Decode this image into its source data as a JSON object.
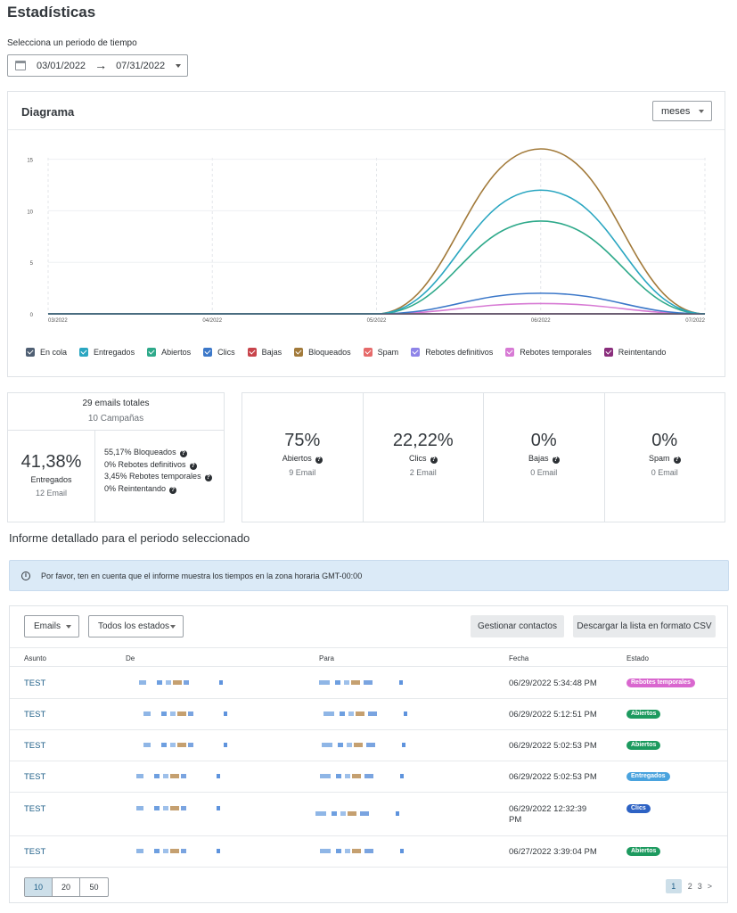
{
  "page": {
    "title": "Estadísticas",
    "period_label": "Selecciona un periodo de tiempo"
  },
  "date_range": {
    "start": "03/01/2022",
    "arrow": "→",
    "end": "07/31/2022"
  },
  "chart_panel": {
    "title": "Diagrama",
    "granularity": "meses"
  },
  "chart_data": {
    "type": "line",
    "title": "",
    "xlabel": "",
    "ylabel": "",
    "categories": [
      "03/2022",
      "04/2022",
      "05/2022",
      "06/2022",
      "07/2022"
    ],
    "ylim": [
      0,
      16
    ],
    "yticks": [
      0,
      5,
      10,
      15
    ],
    "grid": true,
    "legend_position": "bottom",
    "series": [
      {
        "name": "En cola",
        "color": "#4f5f73",
        "values": [
          0,
          0,
          0,
          0,
          0
        ]
      },
      {
        "name": "Entregados",
        "color": "#2aa6c1",
        "values": [
          0,
          0,
          0,
          12,
          0
        ]
      },
      {
        "name": "Abiertos",
        "color": "#2ea98a",
        "values": [
          0,
          0,
          0,
          9,
          0
        ]
      },
      {
        "name": "Clics",
        "color": "#3c78c9",
        "values": [
          0,
          0,
          0,
          2,
          0
        ]
      },
      {
        "name": "Bajas",
        "color": "#c8444b",
        "values": [
          0,
          0,
          0,
          0,
          0
        ]
      },
      {
        "name": "Bloqueados",
        "color": "#a27a3a",
        "values": [
          0,
          0,
          0,
          16,
          0
        ]
      },
      {
        "name": "Spam",
        "color": "#e66a6a",
        "values": [
          0,
          0,
          0,
          0,
          0
        ]
      },
      {
        "name": "Rebotes definitivos",
        "color": "#8e84e8",
        "values": [
          0,
          0,
          0,
          0,
          0
        ]
      },
      {
        "name": "Rebotes temporales",
        "color": "#d77ad4",
        "values": [
          0,
          0,
          0,
          1,
          0
        ]
      },
      {
        "name": "Reintentando",
        "color": "#8a2e7c",
        "values": [
          0,
          0,
          0,
          0,
          0
        ]
      }
    ]
  },
  "summary": {
    "total": "29 emails totales",
    "campaigns": "10 Campañas",
    "delivered_pct": "41,38%",
    "delivered_label": "Entregados",
    "delivered_count": "12 Email",
    "details": [
      "55,17% Bloqueados",
      "0% Rebotes definitivos",
      "3,45% Rebotes temporales",
      "0% Reintentando"
    ]
  },
  "metrics": [
    {
      "pct": "75%",
      "label": "Abiertos",
      "count": "9 Email"
    },
    {
      "pct": "22,22%",
      "label": "Clics",
      "count": "2 Email"
    },
    {
      "pct": "0%",
      "label": "Bajas",
      "count": "0 Email"
    },
    {
      "pct": "0%",
      "label": "Spam",
      "count": "0 Email"
    }
  ],
  "report": {
    "title": "Informe detallado para el periodo seleccionado",
    "info": "Por favor, ten en cuenta que el informe muestra los tiempos en la zona horaria GMT-00:00"
  },
  "table": {
    "filters": {
      "emails": "Emails",
      "states": "Todos los estados"
    },
    "buttons": {
      "manage": "Gestionar contactos",
      "download": "Descargar la lista en formato CSV"
    },
    "headers": [
      "Asunto",
      "De",
      "Para",
      "Fecha",
      "Estado"
    ],
    "rows": [
      {
        "subject": "TEST",
        "date": "06/29/2022 5:34:48 PM",
        "status": "Rebotes temporales",
        "status_color": "#d967cf"
      },
      {
        "subject": "TEST",
        "date": "06/29/2022 5:12:51 PM",
        "status": "Abiertos",
        "status_color": "#1d9a5f"
      },
      {
        "subject": "TEST",
        "date": "06/29/2022 5:02:53 PM",
        "status": "Abiertos",
        "status_color": "#1d9a5f"
      },
      {
        "subject": "TEST",
        "date": "06/29/2022 5:02:53 PM",
        "status": "Entregados",
        "status_color": "#4aa3de"
      },
      {
        "subject": "TEST",
        "date": "06/29/2022 12:32:39 PM",
        "status": "Clics",
        "status_color": "#2d62c4"
      },
      {
        "subject": "TEST",
        "date": "06/27/2022 3:39:04 PM",
        "status": "Abiertos",
        "status_color": "#1d9a5f"
      }
    ],
    "page_sizes": [
      "10",
      "20",
      "50"
    ],
    "pages": [
      "1",
      "2",
      "3",
      ">"
    ]
  }
}
